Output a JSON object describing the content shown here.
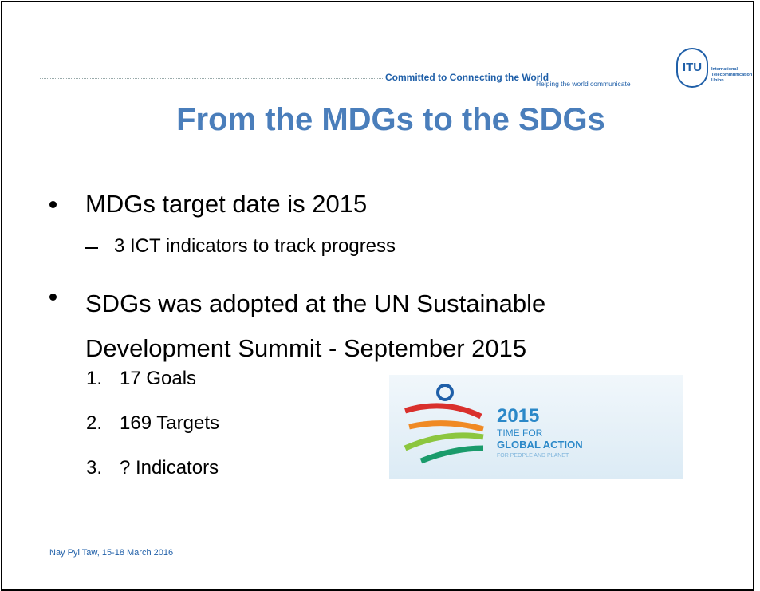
{
  "header": {
    "tagline": "Committed to Connecting the World",
    "subtagline": "Helping the world communicate",
    "logo": {
      "mark": "ITU",
      "lines": [
        "International",
        "Telecommunication",
        "Union"
      ]
    }
  },
  "title": "From the MDGs to the SDGs",
  "bullets": [
    {
      "text": "MDGs target date is 2015",
      "sub": [
        "3 ICT indicators to track progress"
      ]
    },
    {
      "text": "SDGs was adopted at the UN Sustainable Development Summit  - September 2015",
      "numbered": [
        {
          "marker": "1.",
          "text": "17 Goals"
        },
        {
          "marker": "2.",
          "text": "169 Targets"
        },
        {
          "marker": "3.",
          "text": "? Indicators"
        }
      ]
    }
  ],
  "image": {
    "year": "2015",
    "line1": "TIME FOR",
    "line2": "GLOBAL ACTION",
    "line3": "FOR PEOPLE AND PLANET"
  },
  "footer": "Nay Pyi Taw, 15-18 March 2016"
}
